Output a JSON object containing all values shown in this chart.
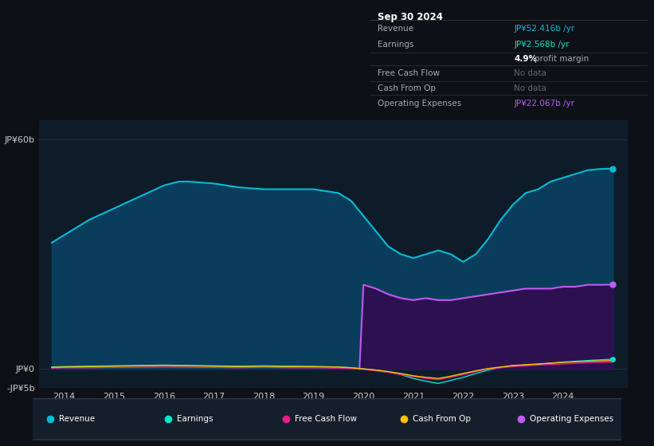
{
  "background_color": "#0d1117",
  "plot_bg_color": "#0e1c2a",
  "ylabel_top": "JP¥60b",
  "ylabel_zero": "JP¥0",
  "ylabel_neg": "-JP¥5b",
  "ylim": [
    -5,
    65
  ],
  "yticks": [
    -5,
    0,
    60
  ],
  "xlim_start": 2013.5,
  "xlim_end": 2025.3,
  "xticks": [
    2014,
    2015,
    2016,
    2017,
    2018,
    2019,
    2020,
    2021,
    2022,
    2023,
    2024
  ],
  "revenue": {
    "x": [
      2013.75,
      2014.0,
      2014.5,
      2015.0,
      2015.5,
      2016.0,
      2016.3,
      2016.5,
      2017.0,
      2017.5,
      2018.0,
      2018.5,
      2019.0,
      2019.5,
      2019.75,
      2020.0,
      2020.25,
      2020.5,
      2020.75,
      2021.0,
      2021.25,
      2021.5,
      2021.75,
      2022.0,
      2022.25,
      2022.5,
      2022.75,
      2023.0,
      2023.25,
      2023.5,
      2023.75,
      2024.0,
      2024.25,
      2024.5,
      2024.75,
      2025.0
    ],
    "y": [
      33,
      35,
      39,
      42,
      45,
      48,
      49,
      49,
      48.5,
      47.5,
      47,
      47,
      47,
      46,
      44,
      40,
      36,
      32,
      30,
      29,
      30,
      31,
      30,
      28,
      30,
      34,
      39,
      43,
      46,
      47,
      49,
      50,
      51,
      52,
      52.3,
      52.4
    ],
    "color": "#00bcd4",
    "fill_color": "#0a3d5c",
    "label": "Revenue"
  },
  "operating_expenses": {
    "x": [
      2019.92,
      2020.0,
      2020.25,
      2020.5,
      2020.75,
      2021.0,
      2021.25,
      2021.5,
      2021.75,
      2022.0,
      2022.25,
      2022.5,
      2022.75,
      2023.0,
      2023.25,
      2023.5,
      2023.75,
      2024.0,
      2024.25,
      2024.5,
      2024.75,
      2025.0
    ],
    "y": [
      0,
      22,
      21,
      19.5,
      18.5,
      18,
      18.5,
      18,
      18,
      18.5,
      19,
      19.5,
      20,
      20.5,
      21,
      21,
      21,
      21.5,
      21.5,
      22,
      22,
      22.067
    ],
    "color": "#bf5af2",
    "fill_color": "#2d1050",
    "label": "Operating Expenses"
  },
  "earnings": {
    "x": [
      2013.75,
      2014.0,
      2014.5,
      2015.0,
      2015.5,
      2016.0,
      2016.5,
      2017.0,
      2017.5,
      2018.0,
      2018.5,
      2019.0,
      2019.5,
      2019.75,
      2020.0,
      2020.25,
      2020.5,
      2020.75,
      2021.0,
      2021.25,
      2021.5,
      2021.75,
      2022.0,
      2022.25,
      2022.5,
      2022.75,
      2023.0,
      2023.5,
      2024.0,
      2024.5,
      2025.0
    ],
    "y": [
      0.5,
      0.6,
      0.7,
      0.8,
      0.9,
      1.0,
      0.9,
      0.8,
      0.7,
      0.8,
      0.7,
      0.6,
      0.5,
      0.3,
      0.0,
      -0.3,
      -0.8,
      -1.5,
      -2.5,
      -3.2,
      -3.8,
      -3.0,
      -2.2,
      -1.2,
      -0.3,
      0.4,
      0.8,
      1.2,
      1.8,
      2.2,
      2.568
    ],
    "color": "#00e5cc",
    "label": "Earnings"
  },
  "free_cash_flow": {
    "x": [
      2013.75,
      2014.0,
      2014.5,
      2015.0,
      2015.5,
      2016.0,
      2016.5,
      2017.0,
      2017.5,
      2018.0,
      2018.5,
      2019.0,
      2019.5,
      2019.75,
      2020.0,
      2020.25,
      2020.5,
      2020.75,
      2021.0,
      2021.25,
      2021.5,
      2021.75,
      2022.0,
      2022.25,
      2022.5,
      2022.75,
      2023.0,
      2023.5,
      2024.0,
      2024.5,
      2025.0
    ],
    "y": [
      0.2,
      0.3,
      0.3,
      0.4,
      0.4,
      0.5,
      0.4,
      0.4,
      0.3,
      0.4,
      0.3,
      0.3,
      0.2,
      0.1,
      -0.1,
      -0.5,
      -0.9,
      -1.5,
      -2.0,
      -2.5,
      -2.8,
      -2.2,
      -1.5,
      -0.7,
      0.0,
      0.3,
      0.6,
      1.0,
      1.3,
      1.6,
      1.8
    ],
    "color": "#e91e8c",
    "label": "Free Cash Flow"
  },
  "cash_from_op": {
    "x": [
      2013.75,
      2014.0,
      2014.5,
      2015.0,
      2015.5,
      2016.0,
      2016.5,
      2017.0,
      2017.5,
      2018.0,
      2018.5,
      2019.0,
      2019.5,
      2019.75,
      2020.0,
      2020.25,
      2020.5,
      2020.75,
      2021.0,
      2021.25,
      2021.5,
      2021.75,
      2022.0,
      2022.25,
      2022.5,
      2022.75,
      2023.0,
      2023.5,
      2024.0,
      2024.5,
      2025.0
    ],
    "y": [
      0.4,
      0.5,
      0.6,
      0.7,
      0.8,
      0.9,
      0.8,
      0.7,
      0.6,
      0.7,
      0.6,
      0.6,
      0.5,
      0.3,
      0.0,
      -0.3,
      -0.7,
      -1.2,
      -1.8,
      -2.2,
      -2.5,
      -1.9,
      -1.2,
      -0.5,
      0.1,
      0.5,
      0.9,
      1.3,
      1.7,
      2.0,
      2.2
    ],
    "color": "#ffc107",
    "label": "Cash From Op"
  },
  "info_box": {
    "date": "Sep 30 2024",
    "rows": [
      {
        "label": "Revenue",
        "value": "JP¥52.416b /yr",
        "value_color": "#00bcd4",
        "note": null
      },
      {
        "label": "Earnings",
        "value": "JP¥2.568b /yr",
        "value_color": "#00e5cc",
        "note": "4.9% profit margin"
      },
      {
        "label": "Free Cash Flow",
        "value": "No data",
        "value_color": "#666666",
        "note": null
      },
      {
        "label": "Cash From Op",
        "value": "No data",
        "value_color": "#666666",
        "note": null
      },
      {
        "label": "Operating Expenses",
        "value": "JP¥22.067b /yr",
        "value_color": "#bf5af2",
        "note": null
      }
    ]
  },
  "legend": [
    {
      "label": "Revenue",
      "color": "#00bcd4"
    },
    {
      "label": "Earnings",
      "color": "#00e5cc"
    },
    {
      "label": "Free Cash Flow",
      "color": "#e91e8c"
    },
    {
      "label": "Cash From Op",
      "color": "#ffc107"
    },
    {
      "label": "Operating Expenses",
      "color": "#bf5af2"
    }
  ]
}
